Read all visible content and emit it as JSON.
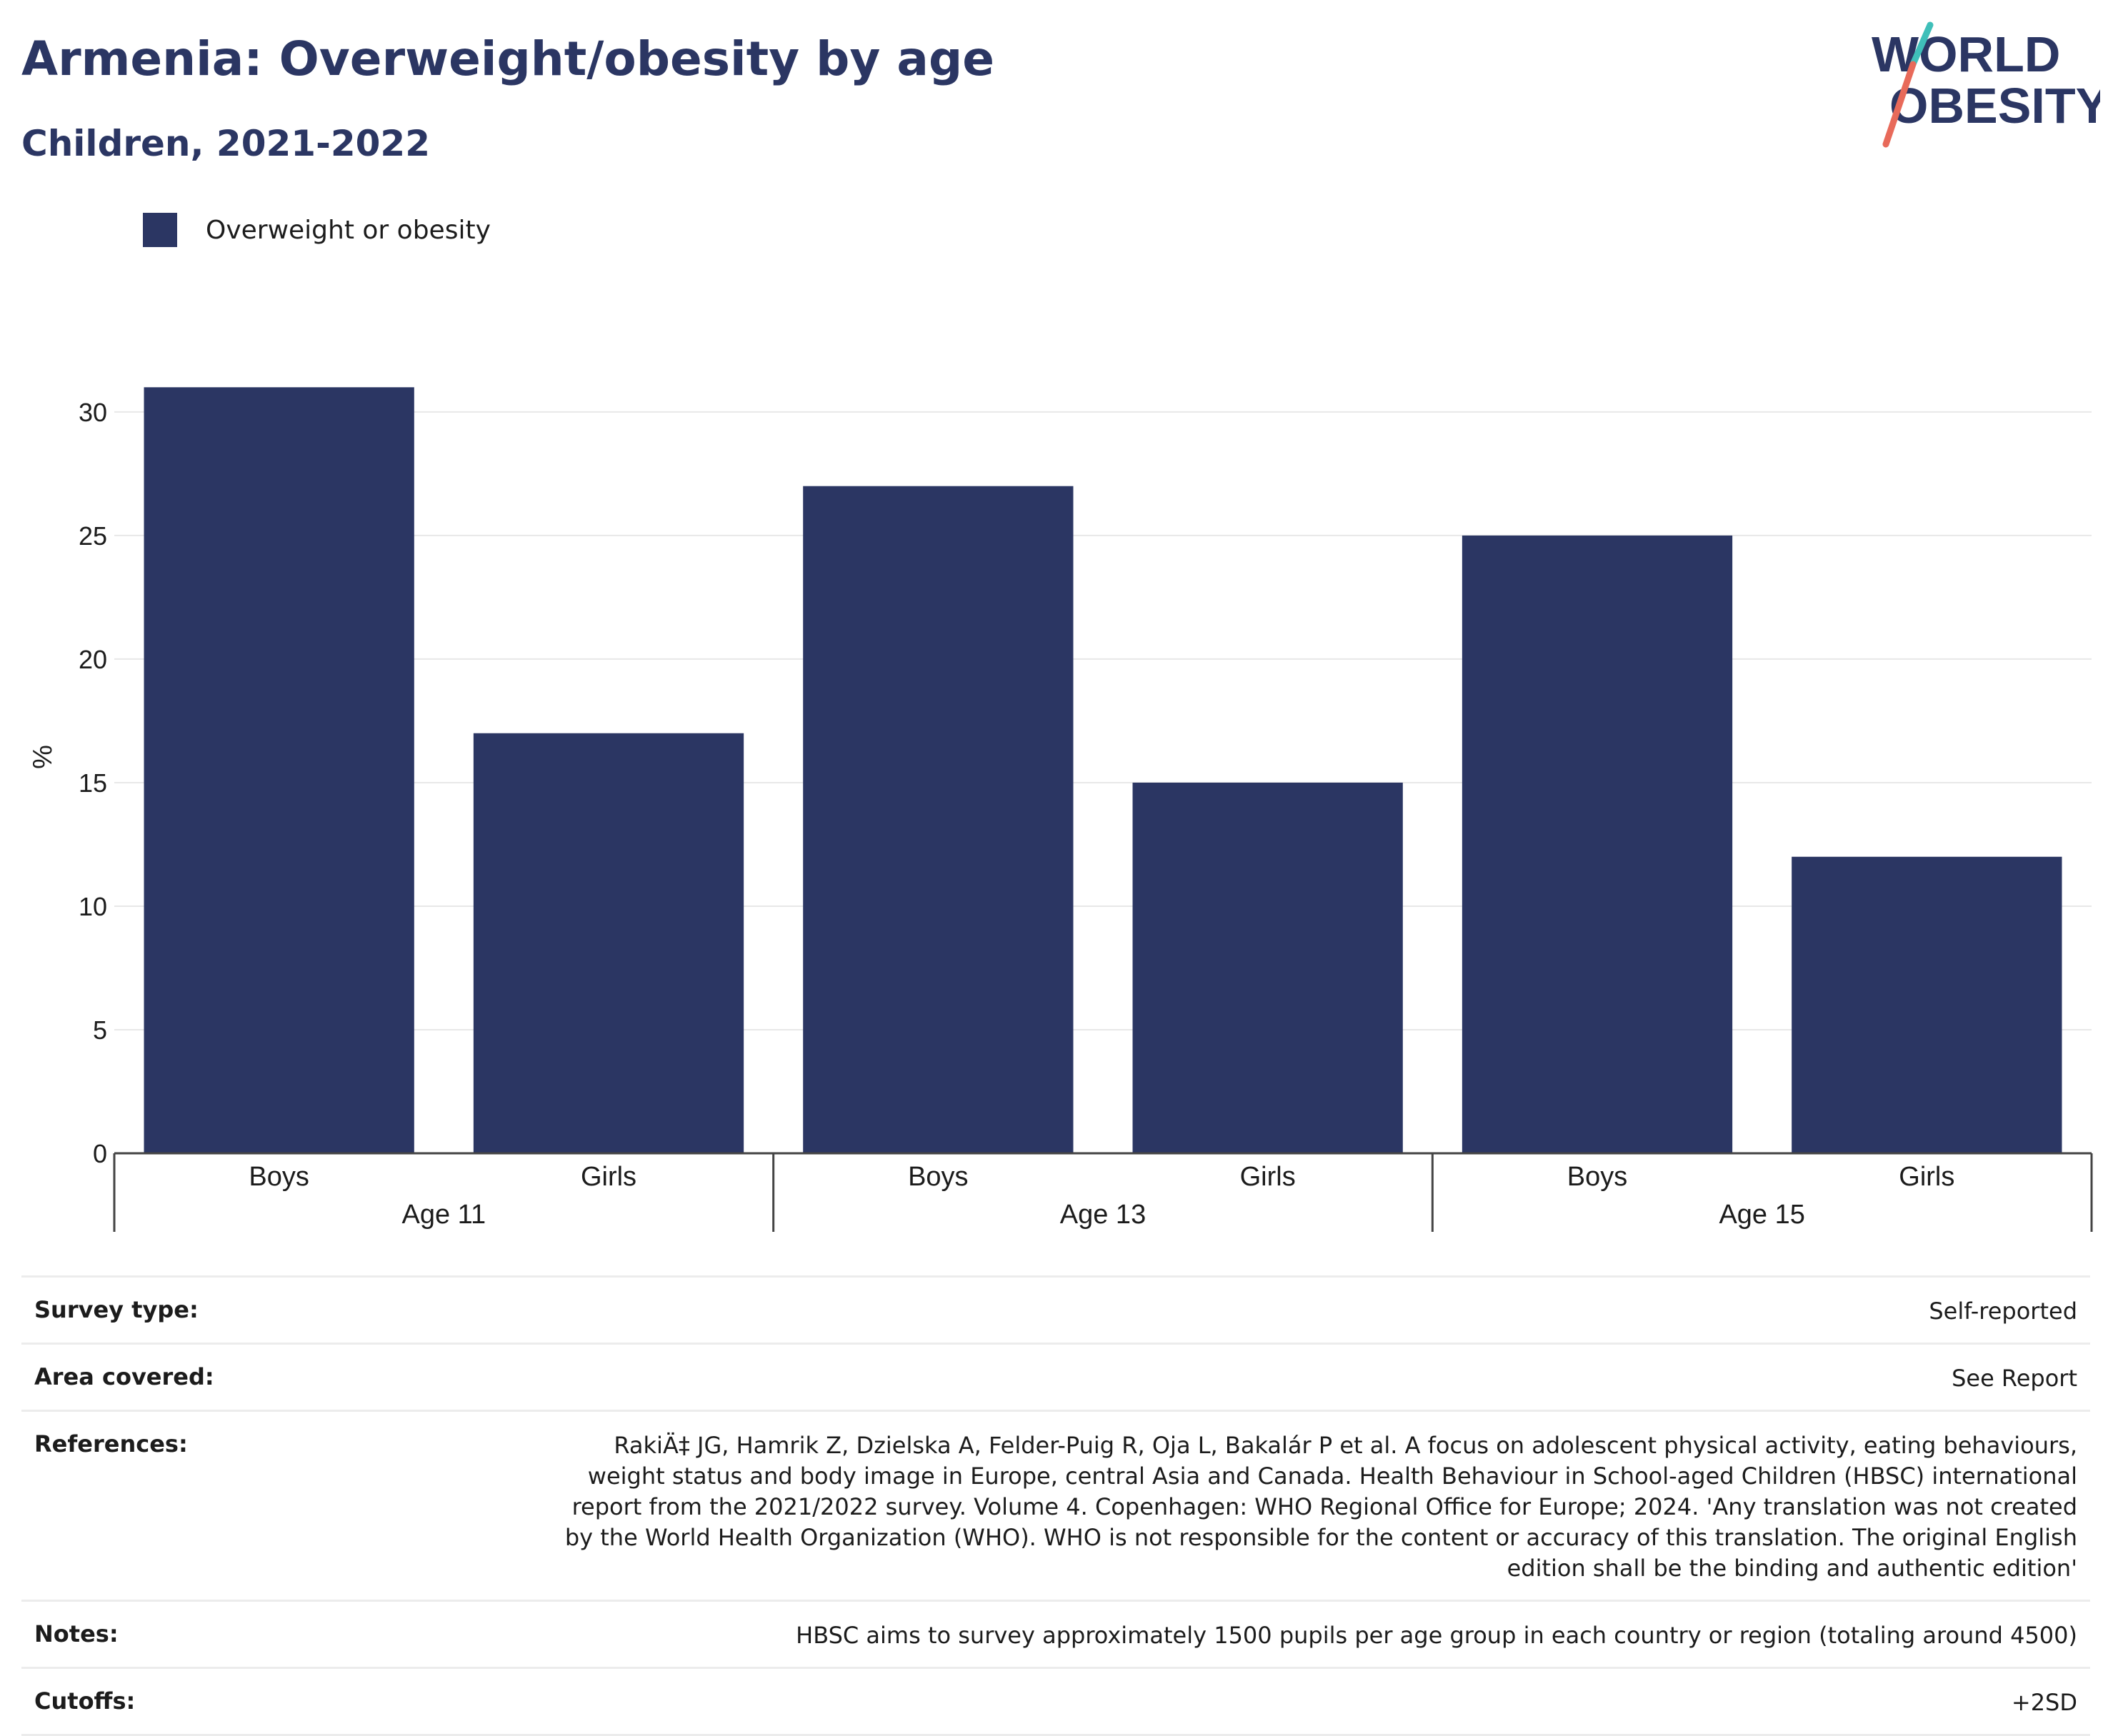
{
  "header": {
    "title": "Armenia: Overweight/obesity by age",
    "subtitle": "Children, 2021-2022"
  },
  "logo": {
    "line1": "WORLD",
    "line2": "OBESITY"
  },
  "colors": {
    "bar": "#2b3663",
    "title": "#2b3663",
    "logo_teal": "#3fbfb9",
    "logo_coral": "#e86a5a",
    "grid": "#e8e8e8"
  },
  "chart_data": {
    "type": "bar",
    "ylabel": "%",
    "ylim": [
      0,
      31.5
    ],
    "yticks": [
      0,
      5,
      10,
      15,
      20,
      25,
      30
    ],
    "grid": true,
    "legend": "top-left",
    "series": [
      {
        "name": "Overweight or obesity",
        "values": [
          31,
          17,
          27,
          15,
          25,
          12
        ]
      }
    ],
    "categories": [
      "Boys",
      "Girls",
      "Boys",
      "Girls",
      "Boys",
      "Girls"
    ],
    "groups": [
      "Age 11",
      "Age 13",
      "Age 15"
    ]
  },
  "details": [
    {
      "key": "Survey type:",
      "value": "Self-reported"
    },
    {
      "key": "Area covered:",
      "value": "See Report"
    },
    {
      "key": "References:",
      "value": "RakiÄ‡ JG, Hamrik Z, Dzielska A, Felder-Puig R, Oja L, Bakalár P et al. A focus on adolescent physical activity, eating behaviours, weight status and body image in Europe, central Asia and Canada. Health Behaviour in School-aged Children (HBSC) international report from the 2021/2022 survey. Volume 4. Copenhagen: WHO Regional Office for Europe; 2024. 'Any translation was not created by the World Health Organization (WHO). WHO is not responsible for the content or accuracy of this translation. The original English edition shall be the binding and authentic edition'"
    },
    {
      "key": "Notes:",
      "value": "HBSC aims to survey approximately 1500 pupils per age group in each country or region (totaling around 4500)"
    },
    {
      "key": "Cutoffs:",
      "value": "+2SD"
    }
  ]
}
